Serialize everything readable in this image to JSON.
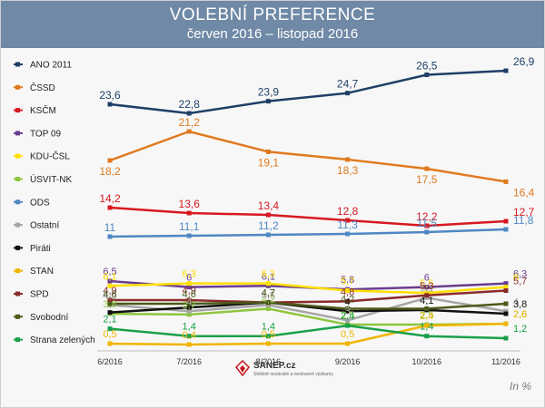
{
  "header": {
    "title": "VOLEBNÍ PREFERENCE",
    "subtitle": "červen 2016 – listopad 2016"
  },
  "logo": {
    "name": "SANEP.cz",
    "tagline": "Striktně nezávislé a nestranné výzkumy"
  },
  "unit_note": "In %",
  "chart_data": {
    "type": "line",
    "title": "VOLEBNÍ PREFERENCE",
    "subtitle": "červen 2016 – listopad 2016",
    "categories": [
      "6/2016",
      "7/2016",
      "8/2016",
      "9/2016",
      "10/2016",
      "11/2016"
    ],
    "legend_position": "left",
    "grid": false,
    "series": [
      {
        "name": "ANO 2011",
        "color": "#1f3f66",
        "values": [
          23.6,
          22.8,
          23.9,
          24.7,
          26.5,
          26.9
        ],
        "labels": [
          "23,6",
          "22,8",
          "23,9",
          "24,7",
          "26,5",
          "26,9"
        ]
      },
      {
        "name": "ČSSD",
        "color": "#e07a1f",
        "values": [
          18.2,
          21.2,
          19.1,
          18.3,
          17.5,
          16.4
        ],
        "labels": [
          "18,2",
          "21,2",
          "19,1",
          "18,3",
          "17,5",
          "16,4"
        ]
      },
      {
        "name": "KSČM",
        "color": "#d71920",
        "values": [
          14.2,
          13.6,
          13.4,
          12.8,
          12.2,
          12.7
        ],
        "labels": [
          "14,2",
          "13,6",
          "13,4",
          "12,8",
          "12,2",
          "12,7"
        ]
      },
      {
        "name": "TOP 09",
        "color": "#6a3d8f",
        "values": [
          6.5,
          6,
          6.1,
          5.8,
          6,
          6.3
        ],
        "labels": [
          "6,5",
          "6",
          "6,1",
          "5,8",
          "6",
          "6,3"
        ]
      },
      {
        "name": "KDU-ČSL",
        "color": "#ffe000",
        "values": [
          6.1,
          6.3,
          6.3,
          5.7,
          5.5,
          6
        ],
        "labels": [
          "6,1",
          "6,3",
          "6,3",
          "5,7",
          "5,5",
          "6"
        ]
      },
      {
        "name": "ÚSVIT-NK",
        "color": "#8dc63f",
        "values": [
          3.8,
          3.7,
          4.2,
          2.5,
          2.5,
          2.6
        ],
        "labels": [
          "3,8",
          "3,7",
          "4,2",
          "2,5",
          "2,5",
          "2,6"
        ]
      },
      {
        "name": "ODS",
        "color": "#4f87c4",
        "values": [
          11,
          11.1,
          11.2,
          11.3,
          11.5,
          11.8
        ],
        "labels": [
          "11",
          "11,1",
          "11,2",
          "11,3",
          "11,5",
          "11,8"
        ]
      },
      {
        "name": "Ostatní",
        "color": "#a6a6a6",
        "values": [
          4.5,
          4,
          4.5,
          3,
          5.1,
          4
        ],
        "labels": [
          "4,5",
          "4",
          "4,5",
          "3",
          "5,1",
          "4"
        ]
      },
      {
        "name": "Piráti",
        "color": "#111111",
        "values": [
          3.9,
          4.3,
          4.7,
          4,
          4.1,
          3.8
        ],
        "labels": [
          "",
          "",
          "",
          "4",
          "4,1",
          "3,8"
        ]
      },
      {
        "name": "STAN",
        "color": "#f0b500",
        "values": [
          0.5,
          0.4,
          0.5,
          0.5,
          2.4,
          2.6
        ],
        "labels": [
          "0,5",
          "0,4",
          "0,5",
          "0,5",
          "2,4",
          "2,6"
        ]
      },
      {
        "name": "SPD",
        "color": "#8b2a2a",
        "values": [
          4.9,
          4.9,
          4.7,
          4.8,
          5.3,
          5.7
        ],
        "labels": [
          "4,9",
          "4,9",
          "4,7",
          "4,8",
          "5,3",
          "5,7"
        ]
      },
      {
        "name": "Svobodní",
        "color": "#4a5a1a",
        "values": [
          4.6,
          4.6,
          4.7,
          4.2,
          4.2,
          4.6
        ],
        "labels": [
          "4,6",
          "4,6",
          "4,7",
          "4,2",
          "",
          ""
        ]
      },
      {
        "name": "Strana zelených",
        "color": "#1aa04a",
        "values": [
          2.1,
          1.4,
          1.4,
          2.4,
          1.4,
          1.2
        ],
        "labels": [
          "2,1",
          "1,4",
          "1,4",
          "2,4",
          "1,4",
          "1,2"
        ]
      }
    ]
  }
}
